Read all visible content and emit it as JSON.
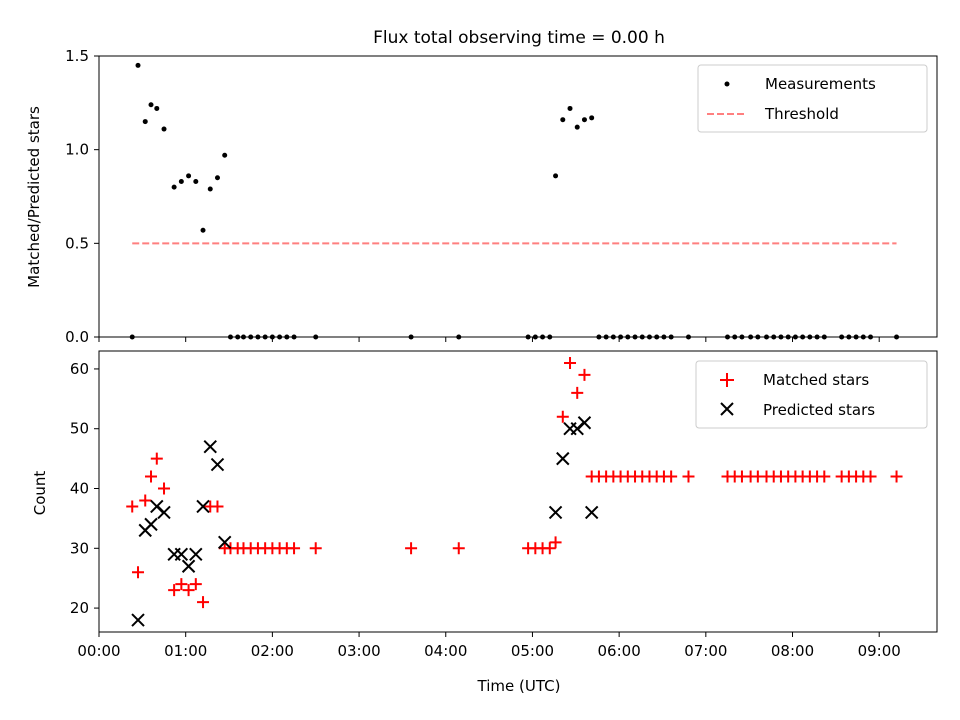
{
  "chart_data": [
    {
      "type": "scatter",
      "title": "Flux total observing time = 0.00 h",
      "xlabel": "",
      "ylabel": "Matched/Predicted stars",
      "xlim": [
        "00:00",
        "09:40"
      ],
      "ylim": [
        0,
        1.5
      ],
      "yticks": [
        "0.0",
        "0.5",
        "1.0",
        "1.5"
      ],
      "grid": false,
      "legend": "top-right",
      "series": [
        {
          "name": "Measurements",
          "kind": "points",
          "color": "#000000",
          "points": [
            [
              "00:23",
              0.0
            ],
            [
              "00:27",
              1.45
            ],
            [
              "00:32",
              1.15
            ],
            [
              "00:36",
              1.24
            ],
            [
              "00:40",
              1.22
            ],
            [
              "00:45",
              1.11
            ],
            [
              "00:52",
              0.8
            ],
            [
              "00:57",
              0.83
            ],
            [
              "01:02",
              0.86
            ],
            [
              "01:07",
              0.83
            ],
            [
              "01:12",
              0.57
            ],
            [
              "01:17",
              0.79
            ],
            [
              "01:22",
              0.85
            ],
            [
              "01:27",
              0.97
            ],
            [
              "01:31",
              0.0
            ],
            [
              "01:36",
              0.0
            ],
            [
              "01:40",
              0.0
            ],
            [
              "01:45",
              0.0
            ],
            [
              "01:50",
              0.0
            ],
            [
              "01:55",
              0.0
            ],
            [
              "02:00",
              0.0
            ],
            [
              "02:05",
              0.0
            ],
            [
              "02:10",
              0.0
            ],
            [
              "02:15",
              0.0
            ],
            [
              "02:30",
              0.0
            ],
            [
              "03:36",
              0.0
            ],
            [
              "04:09",
              0.0
            ],
            [
              "04:57",
              0.0
            ],
            [
              "05:02",
              0.0
            ],
            [
              "05:07",
              0.0
            ],
            [
              "05:12",
              0.0
            ],
            [
              "05:16",
              0.86
            ],
            [
              "05:21",
              1.16
            ],
            [
              "05:26",
              1.22
            ],
            [
              "05:31",
              1.12
            ],
            [
              "05:36",
              1.16
            ],
            [
              "05:41",
              1.17
            ],
            [
              "05:46",
              0.0
            ],
            [
              "05:51",
              0.0
            ],
            [
              "05:56",
              0.0
            ],
            [
              "06:01",
              0.0
            ],
            [
              "06:06",
              0.0
            ],
            [
              "06:11",
              0.0
            ],
            [
              "06:16",
              0.0
            ],
            [
              "06:21",
              0.0
            ],
            [
              "06:26",
              0.0
            ],
            [
              "06:31",
              0.0
            ],
            [
              "06:36",
              0.0
            ],
            [
              "06:48",
              0.0
            ],
            [
              "07:15",
              0.0
            ],
            [
              "07:20",
              0.0
            ],
            [
              "07:25",
              0.0
            ],
            [
              "07:31",
              0.0
            ],
            [
              "07:36",
              0.0
            ],
            [
              "07:42",
              0.0
            ],
            [
              "07:47",
              0.0
            ],
            [
              "07:52",
              0.0
            ],
            [
              "07:57",
              0.0
            ],
            [
              "08:02",
              0.0
            ],
            [
              "08:07",
              0.0
            ],
            [
              "08:12",
              0.0
            ],
            [
              "08:17",
              0.0
            ],
            [
              "08:22",
              0.0
            ],
            [
              "08:34",
              0.0
            ],
            [
              "08:39",
              0.0
            ],
            [
              "08:44",
              0.0
            ],
            [
              "08:49",
              0.0
            ],
            [
              "08:54",
              0.0
            ],
            [
              "09:12",
              0.0
            ]
          ]
        },
        {
          "name": "Threshold",
          "kind": "dashed-line",
          "color": "#ff7f7f",
          "points": [
            [
              "00:23",
              0.5
            ],
            [
              "09:12",
              0.5
            ]
          ]
        }
      ]
    },
    {
      "type": "scatter",
      "title": "",
      "xlabel": "Time (UTC)",
      "ylabel": "Count",
      "xlim": [
        "00:00",
        "09:40"
      ],
      "ylim": [
        16,
        63
      ],
      "xticks": [
        "00:00",
        "01:00",
        "02:00",
        "03:00",
        "04:00",
        "05:00",
        "06:00",
        "07:00",
        "08:00",
        "09:00"
      ],
      "yticks": [
        "20",
        "30",
        "40",
        "50",
        "60"
      ],
      "grid": false,
      "legend": "top-right",
      "series": [
        {
          "name": "Matched stars",
          "marker": "plus",
          "color": "#ff0000",
          "points": [
            [
              "00:23",
              37
            ],
            [
              "00:27",
              26
            ],
            [
              "00:32",
              38
            ],
            [
              "00:36",
              42
            ],
            [
              "00:40",
              45
            ],
            [
              "00:45",
              40
            ],
            [
              "00:52",
              23
            ],
            [
              "00:57",
              24
            ],
            [
              "01:02",
              23
            ],
            [
              "01:07",
              24
            ],
            [
              "01:12",
              21
            ],
            [
              "01:17",
              37
            ],
            [
              "01:22",
              37
            ],
            [
              "01:27",
              30
            ],
            [
              "01:31",
              30
            ],
            [
              "01:36",
              30
            ],
            [
              "01:40",
              30
            ],
            [
              "01:45",
              30
            ],
            [
              "01:50",
              30
            ],
            [
              "01:55",
              30
            ],
            [
              "02:00",
              30
            ],
            [
              "02:05",
              30
            ],
            [
              "02:10",
              30
            ],
            [
              "02:15",
              30
            ],
            [
              "02:30",
              30
            ],
            [
              "03:36",
              30
            ],
            [
              "04:09",
              30
            ],
            [
              "04:57",
              30
            ],
            [
              "05:02",
              30
            ],
            [
              "05:07",
              30
            ],
            [
              "05:12",
              30
            ],
            [
              "05:16",
              31
            ],
            [
              "05:21",
              52
            ],
            [
              "05:26",
              61
            ],
            [
              "05:31",
              56
            ],
            [
              "05:36",
              59
            ],
            [
              "05:41",
              42
            ],
            [
              "05:46",
              42
            ],
            [
              "05:51",
              42
            ],
            [
              "05:56",
              42
            ],
            [
              "06:01",
              42
            ],
            [
              "06:06",
              42
            ],
            [
              "06:11",
              42
            ],
            [
              "06:16",
              42
            ],
            [
              "06:21",
              42
            ],
            [
              "06:26",
              42
            ],
            [
              "06:31",
              42
            ],
            [
              "06:36",
              42
            ],
            [
              "06:48",
              42
            ],
            [
              "07:15",
              42
            ],
            [
              "07:20",
              42
            ],
            [
              "07:25",
              42
            ],
            [
              "07:31",
              42
            ],
            [
              "07:36",
              42
            ],
            [
              "07:42",
              42
            ],
            [
              "07:47",
              42
            ],
            [
              "07:52",
              42
            ],
            [
              "07:57",
              42
            ],
            [
              "08:02",
              42
            ],
            [
              "08:07",
              42
            ],
            [
              "08:12",
              42
            ],
            [
              "08:17",
              42
            ],
            [
              "08:22",
              42
            ],
            [
              "08:34",
              42
            ],
            [
              "08:39",
              42
            ],
            [
              "08:44",
              42
            ],
            [
              "08:49",
              42
            ],
            [
              "08:54",
              42
            ],
            [
              "09:12",
              42
            ]
          ]
        },
        {
          "name": "Predicted stars",
          "marker": "x",
          "color": "#000000",
          "points": [
            [
              "00:27",
              18
            ],
            [
              "00:32",
              33
            ],
            [
              "00:36",
              34
            ],
            [
              "00:40",
              37
            ],
            [
              "00:45",
              36
            ],
            [
              "00:52",
              29
            ],
            [
              "00:57",
              29
            ],
            [
              "01:02",
              27
            ],
            [
              "01:07",
              29
            ],
            [
              "01:12",
              37
            ],
            [
              "01:17",
              47
            ],
            [
              "01:22",
              44
            ],
            [
              "01:27",
              31
            ],
            [
              "05:16",
              36
            ],
            [
              "05:21",
              45
            ],
            [
              "05:26",
              50
            ],
            [
              "05:31",
              50
            ],
            [
              "05:36",
              51
            ],
            [
              "05:41",
              36
            ]
          ]
        }
      ]
    }
  ]
}
